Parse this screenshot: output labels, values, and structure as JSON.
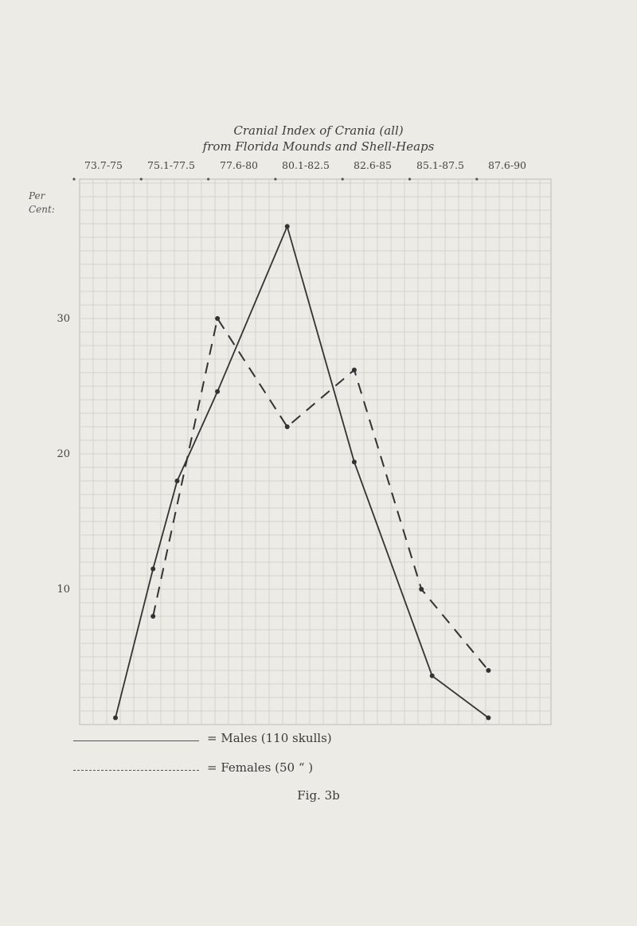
{
  "chart_data": {
    "type": "line",
    "title": "Cranial Index of Crania (all)",
    "subtitle": "from Florida Mounds and Shell-Heaps",
    "categories": [
      "73.7-75",
      "75.1-77.5",
      "77.6-80",
      "80.1-82.5",
      "82.6-85",
      "85.1-87.5",
      "87.6-90"
    ],
    "ylabel": "Per Cent:",
    "yticks": [
      10,
      20,
      30
    ],
    "ylim": [
      0,
      38
    ],
    "grid": true,
    "series": [
      {
        "name": "Males (110 skulls)",
        "legend_label": "= Males (110 skulls)",
        "style": "solid",
        "points": [
          {
            "x": 73.7,
            "y": 0.5
          },
          {
            "x": 75.1,
            "y": 11.5
          },
          {
            "x": 76.0,
            "y": 18.0
          },
          {
            "x": 77.5,
            "y": 24.6
          },
          {
            "x": 80.1,
            "y": 36.8
          },
          {
            "x": 82.6,
            "y": 19.4
          },
          {
            "x": 85.5,
            "y": 3.6
          },
          {
            "x": 87.6,
            "y": 0.5
          }
        ]
      },
      {
        "name": "Females (50 \" )",
        "legend_label": "= Females (50 “ )",
        "style": "dashed",
        "points": [
          {
            "x": 75.1,
            "y": 8.0
          },
          {
            "x": 77.5,
            "y": 30.0
          },
          {
            "x": 80.1,
            "y": 22.0
          },
          {
            "x": 82.6,
            "y": 26.2
          },
          {
            "x": 85.1,
            "y": 10.0
          },
          {
            "x": 87.6,
            "y": 4.0
          }
        ]
      }
    ]
  },
  "caption": "Fig. 3b",
  "colors": {
    "paper": "#ecebe6",
    "grid": "#d3d3ce",
    "ink": "#333333"
  }
}
